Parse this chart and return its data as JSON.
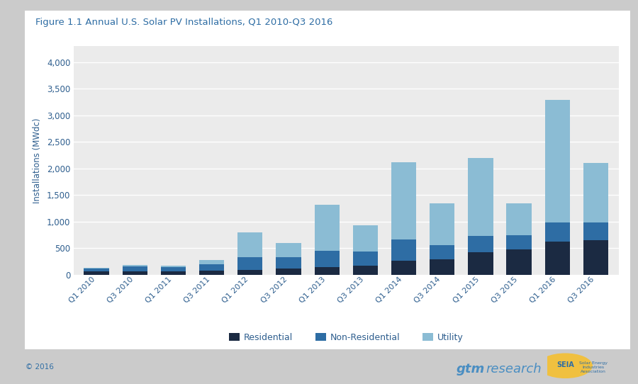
{
  "quarters": [
    "Q1 2010",
    "Q3 2010",
    "Q1 2011",
    "Q3 2011",
    "Q1 2012",
    "Q3 2012",
    "Q1 2013",
    "Q3 2013",
    "Q1 2014",
    "Q3 2014",
    "Q1 2015",
    "Q3 2015",
    "Q1 2016",
    "Q3 2016"
  ],
  "residential": [
    55,
    65,
    60,
    80,
    90,
    110,
    140,
    165,
    265,
    285,
    415,
    475,
    625,
    650
  ],
  "non_residential": [
    60,
    85,
    75,
    120,
    240,
    220,
    305,
    270,
    390,
    270,
    310,
    270,
    355,
    330
  ],
  "utility": [
    15,
    25,
    30,
    75,
    470,
    270,
    870,
    490,
    1455,
    780,
    1475,
    590,
    2310,
    1115
  ],
  "color_residential": "#1b2a42",
  "color_non_residential": "#2e6da4",
  "color_utility": "#8bbcd4",
  "title": "Figure 1.1 Annual U.S. Solar PV Installations, Q1 2010-Q3 2016",
  "ylabel": "Installations (MWdc)",
  "ylim_max": 4300,
  "yticks": [
    0,
    500,
    1000,
    1500,
    2000,
    2500,
    3000,
    3500,
    4000
  ],
  "legend_labels": [
    "Residential",
    "Non-Residential",
    "Utility"
  ],
  "plot_bg_color": "#ebebeb",
  "card_bg_color": "#ffffff",
  "outer_bg_color": "#cbcbcb",
  "title_color": "#2e6da4",
  "label_color": "#2e5e8e",
  "footer_text": "© 2016",
  "grid_color": "#ffffff",
  "gtm_bold": "gtm",
  "gtm_light": "research"
}
